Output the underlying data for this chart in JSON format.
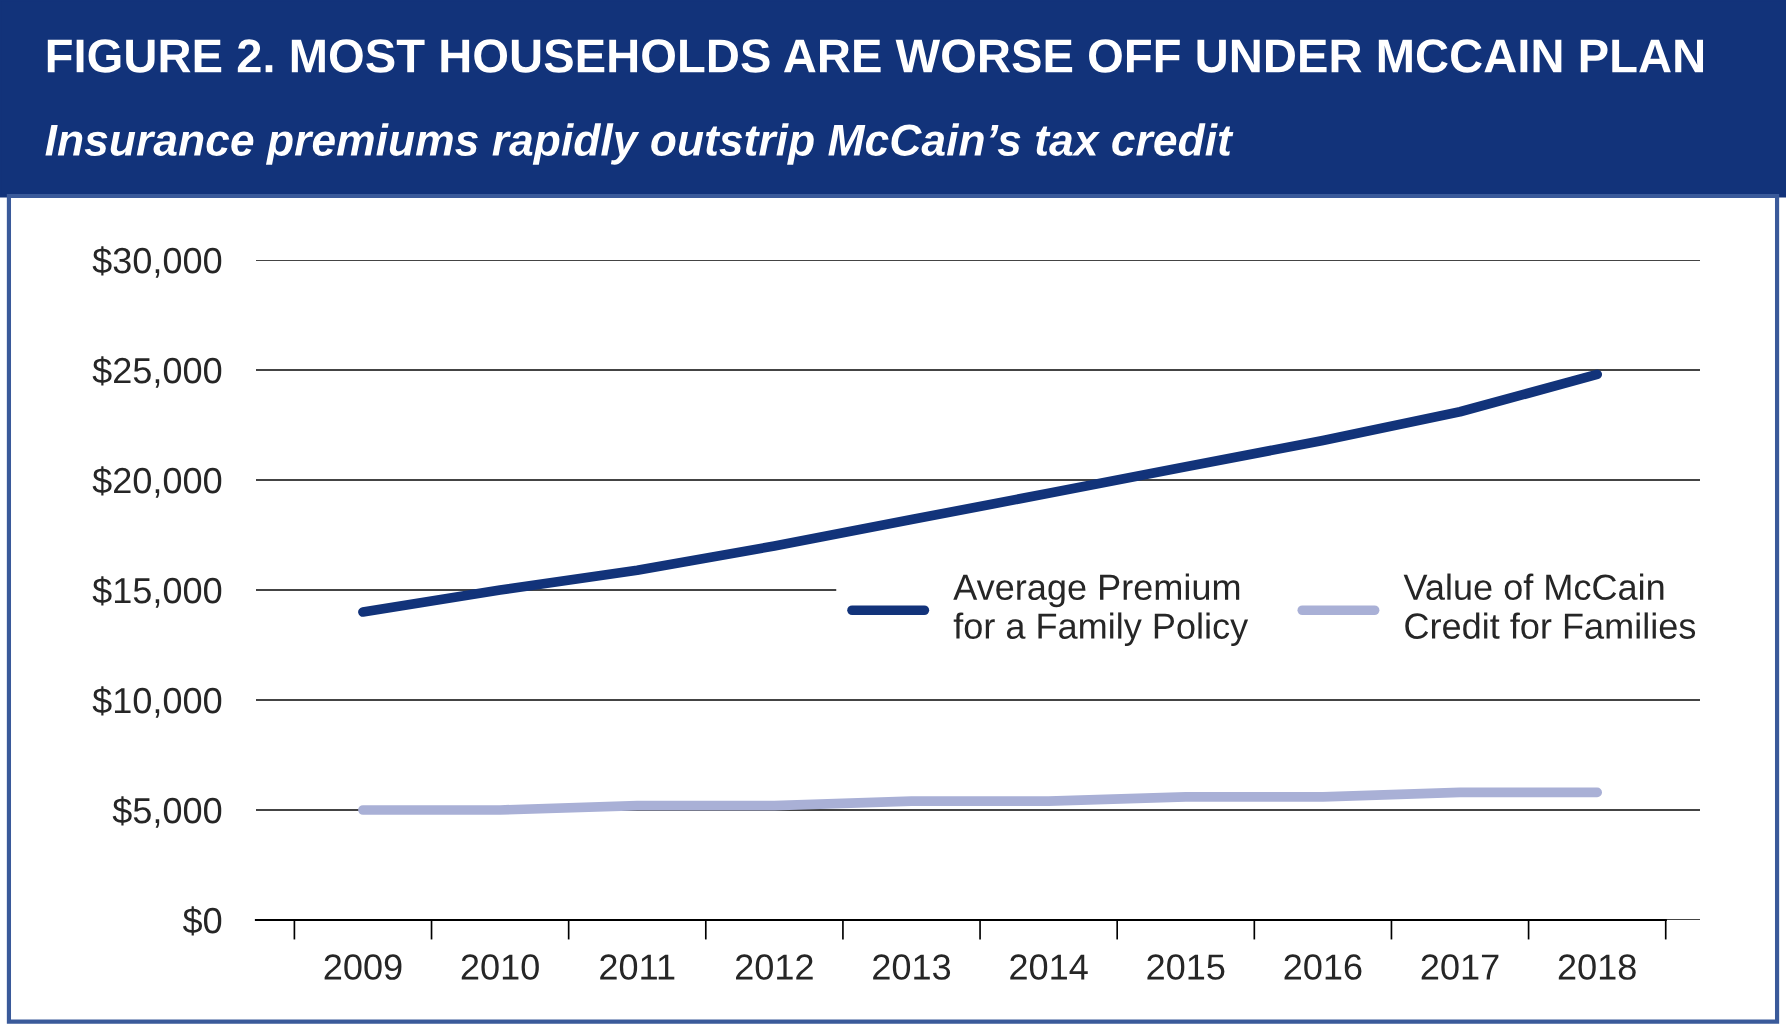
{
  "chart_data": {
    "type": "line",
    "title": "FIGURE 2. MOST HOUSEHOLDS ARE WORSE OFF UNDER MCCAIN PLAN",
    "subtitle": "Insurance premiums rapidly outstrip McCain’s tax credit",
    "categories": [
      "2009",
      "2010",
      "2011",
      "2012",
      "2013",
      "2014",
      "2015",
      "2016",
      "2017",
      "2018"
    ],
    "series": [
      {
        "name": "Average Premium\nfor a Family Policy",
        "color": "#12337a",
        "values": [
          14000,
          15000,
          15900,
          17000,
          18200,
          19400,
          20600,
          21800,
          23100,
          24800
        ]
      },
      {
        "name": "Value of McCain\nCredit for Families",
        "color": "#a9b0d6",
        "values": [
          5000,
          5000,
          5200,
          5200,
          5400,
          5400,
          5600,
          5600,
          5800,
          5800
        ]
      }
    ],
    "ylim": [
      0,
      30000
    ],
    "yticks": [
      {
        "value": 0,
        "label": "$0"
      },
      {
        "value": 5000,
        "label": "$5,000"
      },
      {
        "value": 10000,
        "label": "$10,000"
      },
      {
        "value": 15000,
        "label": "$15,000"
      },
      {
        "value": 20000,
        "label": "$20,000"
      },
      {
        "value": 25000,
        "label": "$25,000"
      },
      {
        "value": 30000,
        "label": "$30,000"
      }
    ],
    "grid": "y",
    "legend": "right",
    "marker": "none",
    "line_style": "solid"
  }
}
